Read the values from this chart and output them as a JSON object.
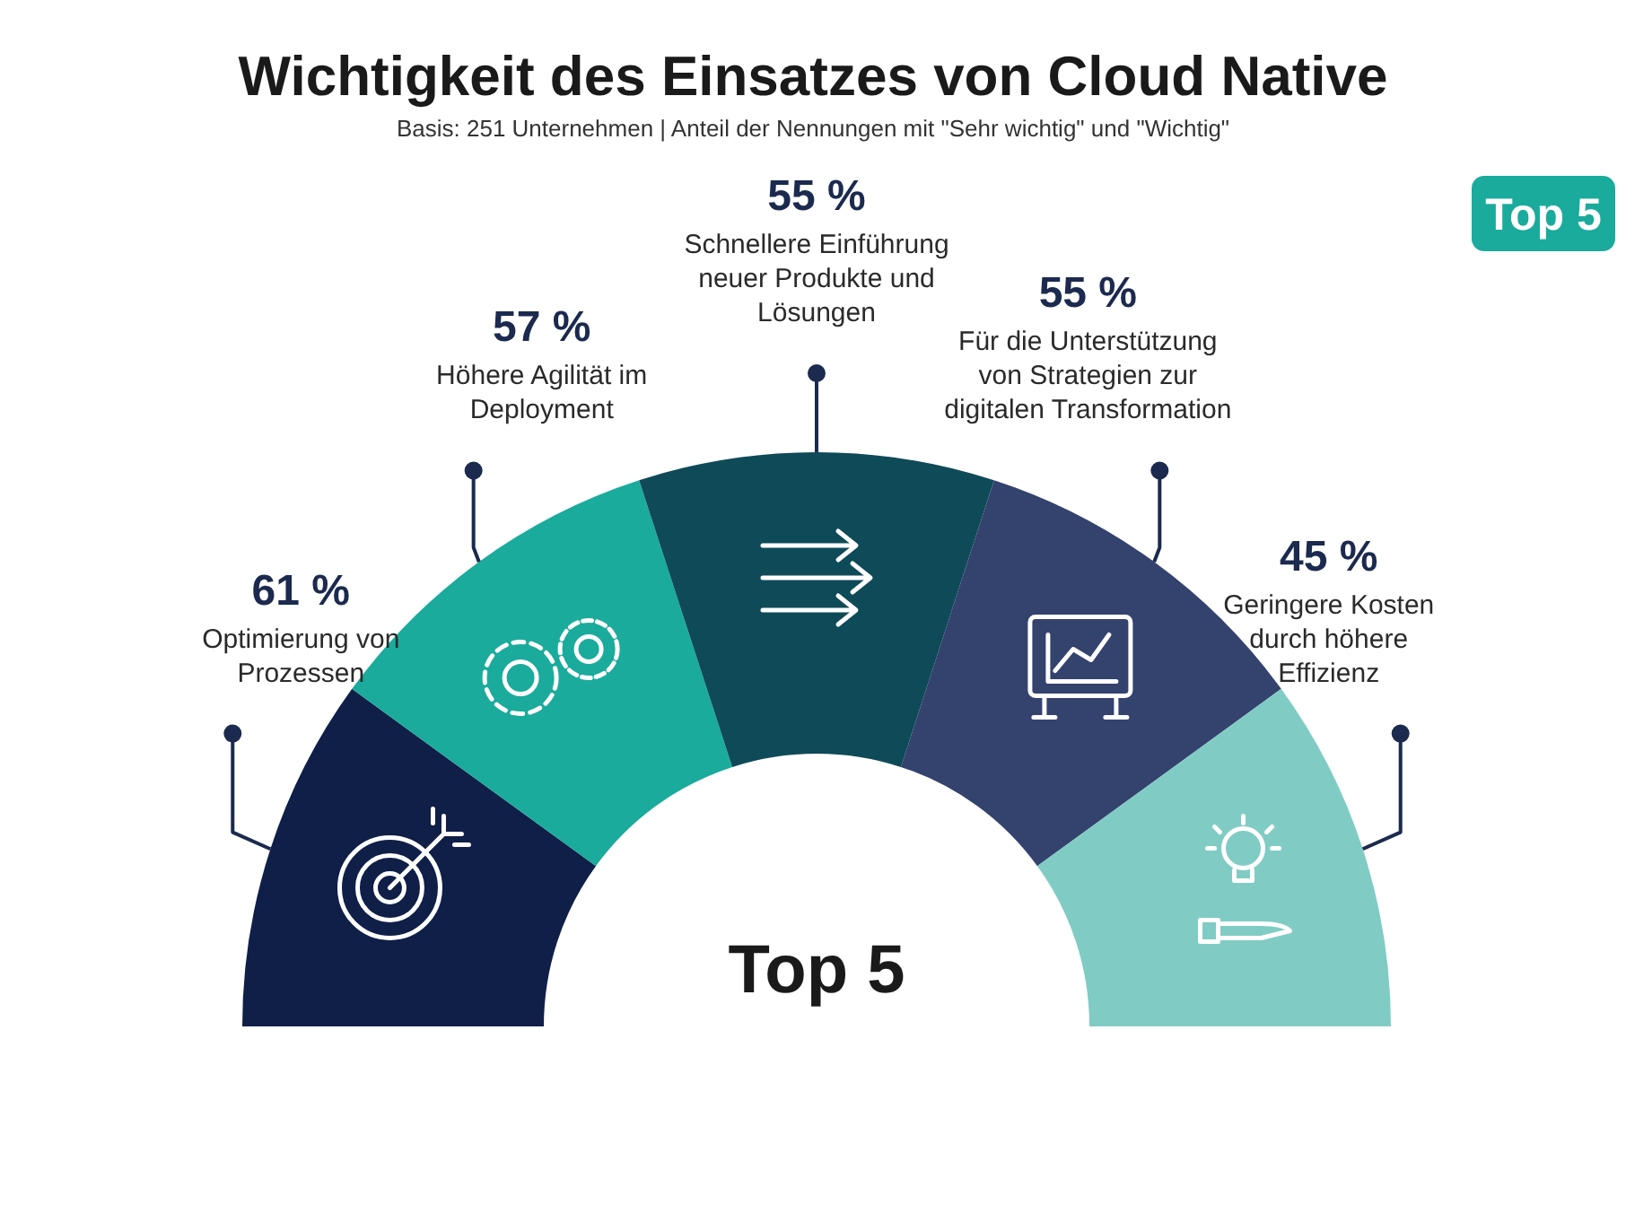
{
  "chart_data": {
    "type": "other",
    "title": "Wichtigkeit des Einsatzes von Cloud Native",
    "subtitle": "Basis: 251 Unternehmen | Anteil der Nennungen mit \"Sehr wichtig\" und \"Wichtig\"",
    "categories": [
      "Optimierung von Prozessen",
      "Höhere Agilität im Deployment",
      "Schnellere Einführung neuer Produkte und Lösungen",
      "Für die Unterstützung von Strategien zur digitalen Transformation",
      "Geringere Kosten durch höhere Effizienz"
    ],
    "values": [
      61,
      57,
      55,
      55,
      45
    ],
    "value_labels": [
      "61 %",
      "57 %",
      "55 %",
      "55 %",
      "45 %"
    ],
    "colors": [
      "#0f1f48",
      "#1aab9c",
      "#0f4a58",
      "#34426e",
      "#80ccc4"
    ],
    "annotations": [
      "Top 5",
      "Top 5"
    ]
  }
}
